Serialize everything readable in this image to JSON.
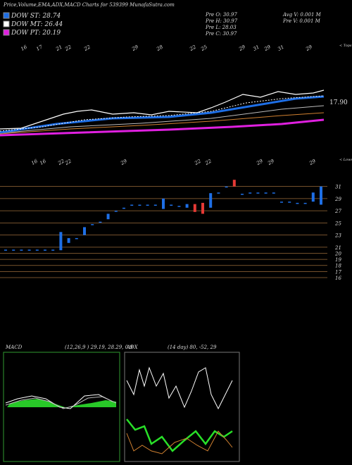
{
  "header": {
    "title": "Price,Volume,EMA,ADX,MACD Charts for 539399 MunafaSutra.com",
    "legend": [
      "DOW ST: 28.74",
      "DOW MT: 26.44",
      "DOW PT: 20.19"
    ],
    "info_left": [
      "Pre  O: 30.97",
      "Pre  H: 30.97",
      "Pre  L: 28.03",
      "Pre  C: 30.97"
    ],
    "info_right": [
      "Avg  V: 0.001 M",
      "Pre  V: 0.001 M"
    ]
  },
  "top_panel": {
    "dates": [
      "16",
      "17",
      "21",
      "22",
      "22",
      "29",
      "28",
      "22",
      "25",
      "29",
      "31",
      "29",
      "31",
      "29"
    ],
    "side_label": "< Tops",
    "price_label": "17.90"
  },
  "chart_data": {
    "type": "candlestick",
    "side_label": "< Lows",
    "dates": [
      "16",
      "16",
      "22",
      "22",
      "29",
      "22",
      "22",
      "29",
      "29",
      "29"
    ],
    "open": [
      20.6,
      20.6,
      20.6,
      20.6,
      20.6,
      20.6,
      20.6,
      20.5,
      21.7,
      22.5,
      23,
      24.8,
      25.2,
      25.6,
      27,
      27.5,
      28,
      28,
      28,
      28,
      27.3,
      28,
      27.8,
      27.5,
      28.1,
      28.3,
      27.5,
      30,
      31,
      32.1,
      29.8,
      30,
      30,
      30,
      30,
      28.5,
      28.5,
      28.3,
      28.3,
      28.5,
      28
    ],
    "close": [
      20.6,
      20.6,
      20.6,
      20.6,
      20.6,
      20.6,
      20.6,
      23.5,
      22.5,
      22.5,
      24.3,
      24.8,
      25.2,
      26.5,
      27,
      27.5,
      28,
      28,
      28,
      28,
      29,
      28,
      27.8,
      28.1,
      26.8,
      26.5,
      29.9,
      30,
      31,
      31,
      29.8,
      30,
      30,
      30,
      30,
      28.5,
      28.5,
      28.3,
      28.3,
      30,
      31
    ],
    "up_color": "#1e6fe6",
    "down_color": "#e53935",
    "ylim": [
      15.3,
      32.7
    ],
    "yticks": [
      31,
      29,
      27,
      25,
      23,
      21,
      20,
      19,
      18,
      17,
      16
    ]
  },
  "macd": {
    "label": "MACD",
    "params": "(12,26,9 ) 29.19, 28.29, 0.9"
  },
  "adx": {
    "label": "ADX",
    "params": "(14 day) 80, -52, 29"
  }
}
